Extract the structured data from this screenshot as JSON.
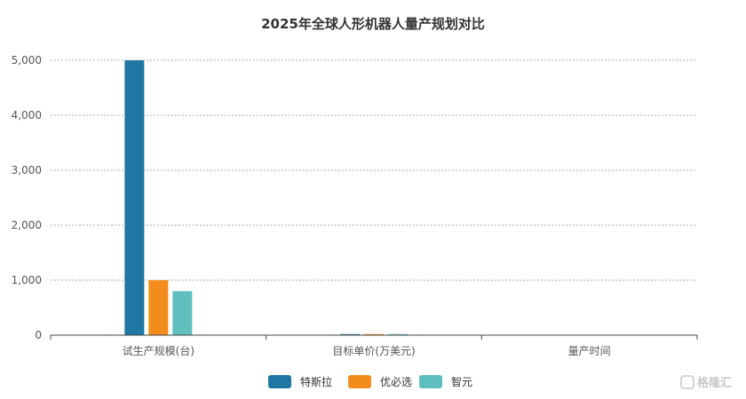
{
  "chart_data": {
    "type": "bar",
    "title": "2025年全球人形机器人量产规划对比",
    "xlabel": "",
    "ylabel": "",
    "categories": [
      "试生产规模(台)",
      "目标单价(万美元)",
      "量产时间"
    ],
    "series": [
      {
        "name": "特斯拉",
        "color": "#1f77a3",
        "values": [
          5000,
          2,
          0
        ]
      },
      {
        "name": "优必选",
        "color": "#f28c1c",
        "values": [
          1000,
          15,
          0
        ]
      },
      {
        "name": "智元",
        "color": "#5fbfbf",
        "values": [
          800,
          10,
          0
        ]
      }
    ],
    "yticks": [
      "0",
      "1,000",
      "2,000",
      "3,000",
      "4,000",
      "5,000"
    ],
    "ylim": [
      0,
      5000
    ],
    "grid": true,
    "legend_position": "bottom"
  },
  "watermark": {
    "text": "格隆汇",
    "icon": "gelonghui-logo-icon"
  }
}
